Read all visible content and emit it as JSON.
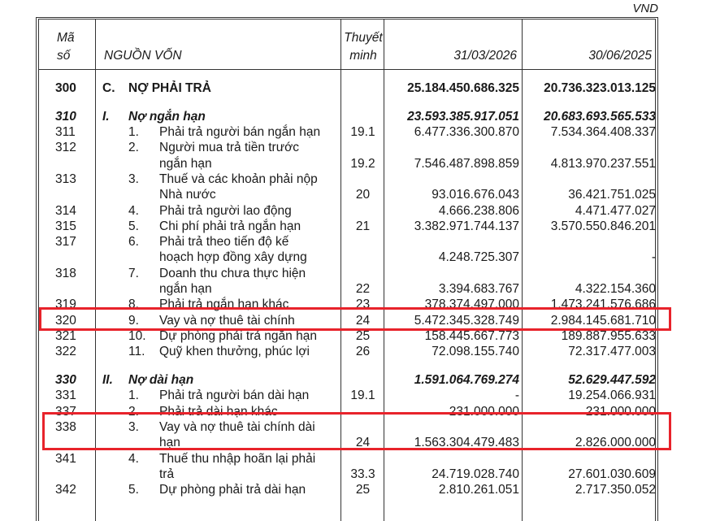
{
  "document": {
    "unit": "VND",
    "headers": {
      "code": [
        "Mã",
        "số"
      ],
      "name": "NGUỒN VỐN",
      "note": [
        "Thuyết",
        "minh"
      ],
      "col1": "31/03/2026",
      "col2": "30/06/2025"
    },
    "highlight_color": "#e8232b",
    "rows": [
      {
        "code": "300",
        "pre1": "C.",
        "pre2": "",
        "lines": [
          "NỢ PHẢI TRẢ"
        ],
        "note": "",
        "v1": "25.184.450.686.325",
        "v2": "20.736.323.013.125",
        "style": "bold"
      },
      {
        "code": "310",
        "pre1": "I.",
        "pre2": "",
        "lines": [
          "Nợ ngắn hạn"
        ],
        "note": "",
        "v1": "23.593.385.917.051",
        "v2": "20.683.693.565.533",
        "style": "ital"
      },
      {
        "code": "311",
        "pre1": "",
        "pre2": "1.",
        "lines": [
          "Phải trả người bán ngắn hạn"
        ],
        "note": "19.1",
        "v1": "6.477.336.300.870",
        "v2": "7.534.364.408.337"
      },
      {
        "code": "312",
        "pre1": "",
        "pre2": "2.",
        "lines": [
          "Người mua trả tiền trước",
          "ngắn hạn"
        ],
        "note": "19.2",
        "v1": "7.546.487.898.859",
        "v2": "4.813.970.237.551"
      },
      {
        "code": "313",
        "pre1": "",
        "pre2": "3.",
        "lines": [
          "Thuế và các khoản phải nộp",
          "Nhà nước"
        ],
        "note": "20",
        "v1": "93.016.676.043",
        "v2": "36.421.751.025"
      },
      {
        "code": "314",
        "pre1": "",
        "pre2": "4.",
        "lines": [
          "Phải trả người lao động"
        ],
        "note": "",
        "v1": "4.666.238.806",
        "v2": "4.471.477.027"
      },
      {
        "code": "315",
        "pre1": "",
        "pre2": "5.",
        "lines": [
          "Chi phí phải trả ngắn hạn"
        ],
        "note": "21",
        "v1": "3.382.971.744.137",
        "v2": "3.570.550.846.201"
      },
      {
        "code": "317",
        "pre1": "",
        "pre2": "6.",
        "lines": [
          "Phải trả theo tiến độ kế",
          "hoạch hợp đồng xây dựng"
        ],
        "note": "",
        "v1": "4.248.725.307",
        "v2": "-"
      },
      {
        "code": "318",
        "pre1": "",
        "pre2": "7.",
        "lines": [
          "Doanh thu chưa thực hiện",
          "ngắn hạn"
        ],
        "note": "22",
        "v1": "3.394.683.767",
        "v2": "4.322.154.360"
      },
      {
        "code": "319",
        "pre1": "",
        "pre2": "8.",
        "lines": [
          "Phải trả ngắn hạn khác"
        ],
        "note": "23",
        "v1": "378.374.497.000",
        "v2": "1.473.241.576.686"
      },
      {
        "code": "320",
        "pre1": "",
        "pre2": "9.",
        "lines": [
          "Vay và nợ thuê tài chính"
        ],
        "note": "24",
        "v1": "5.472.345.328.749",
        "v2": "2.984.145.681.710",
        "highlighted": true
      },
      {
        "code": "321",
        "pre1": "",
        "pre2": "10.",
        "lines": [
          "Dự phòng phải trả ngắn hạn"
        ],
        "note": "25",
        "v1": "158.445.667.773",
        "v2": "189.887.955.633"
      },
      {
        "code": "322",
        "pre1": "",
        "pre2": "11.",
        "lines": [
          "Quỹ khen thưởng, phúc lợi"
        ],
        "note": "26",
        "v1": "72.098.155.740",
        "v2": "72.317.477.003",
        "style": "gap"
      },
      {
        "code": "330",
        "pre1": "II.",
        "pre2": "",
        "lines": [
          "Nợ dài hạn"
        ],
        "note": "",
        "v1": "1.591.064.769.274",
        "v2": "52.629.447.592",
        "style": "ital"
      },
      {
        "code": "331",
        "pre1": "",
        "pre2": "1.",
        "lines": [
          "Phải trả người bán dài hạn"
        ],
        "note": "19.1",
        "v1": "-",
        "v2": "19.254.066.931"
      },
      {
        "code": "337",
        "pre1": "",
        "pre2": "2.",
        "lines": [
          "Phải trả dài hạn khác"
        ],
        "note": "",
        "v1": "231.000.000",
        "v2": "231.000.000"
      },
      {
        "code": "338",
        "pre1": "",
        "pre2": "3.",
        "lines": [
          "Vay và nợ thuê tài chính dài",
          "hạn"
        ],
        "note": "24",
        "v1": "1.563.304.479.483",
        "v2": "2.826.000.000",
        "highlighted": true
      },
      {
        "code": "341",
        "pre1": "",
        "pre2": "4.",
        "lines": [
          "Thuế thu nhập hoãn lại phải",
          "trả"
        ],
        "note": "33.3",
        "v1": "24.719.028.740",
        "v2": "27.601.030.609"
      },
      {
        "code": "342",
        "pre1": "",
        "pre2": "5.",
        "lines": [
          "Dự phòng phải trả dài hạn"
        ],
        "note": "25",
        "v1": "2.810.261.051",
        "v2": "2.717.350.052"
      }
    ]
  }
}
